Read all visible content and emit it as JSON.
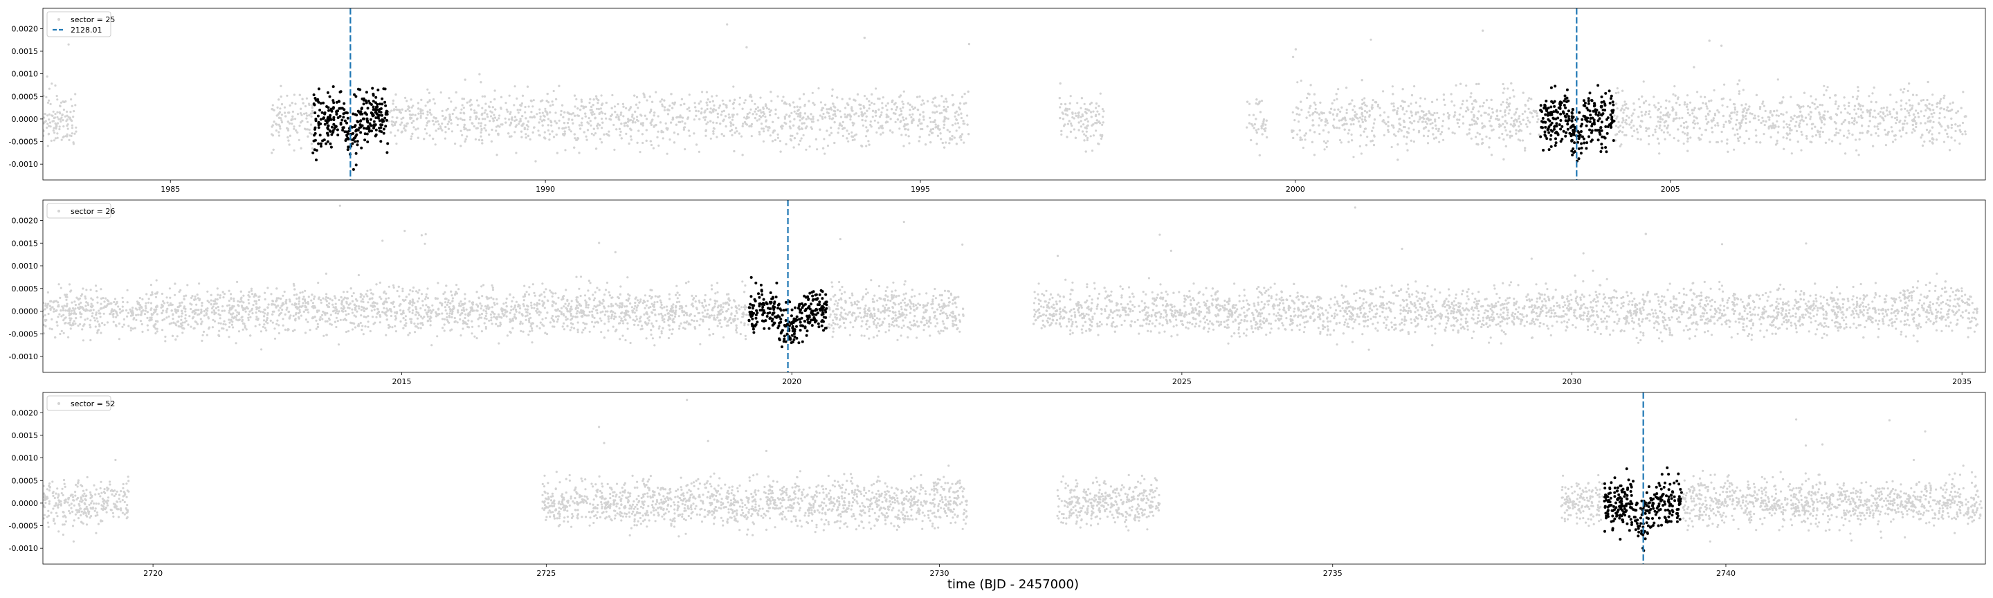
{
  "chart_data": [
    {
      "type": "scatter",
      "legend_position": "upper-left",
      "xlim": [
        1983.3,
        2009.2
      ],
      "ylim": [
        -0.00135,
        0.00245
      ],
      "xticks": [
        "1985",
        "1990",
        "1995",
        "2000",
        "2005"
      ],
      "yticks": [
        "0.0020",
        "0.0015",
        "0.0010",
        "0.0005",
        "0.0000",
        "-0.0005",
        "-0.0010"
      ],
      "series": [
        {
          "name": "sector = 25",
          "style": "points",
          "color": "#d3d3d3",
          "noise": 0.0003,
          "segments": [
            [
              1983.3,
              1983.75
            ],
            [
              1986.35,
              2008.95
            ]
          ],
          "gaps": [
            [
              1995.65,
              1996.85
            ],
            [
              1997.45,
              1999.35
            ],
            [
              1999.65,
              1999.95
            ]
          ]
        },
        {
          "name": "",
          "style": "points",
          "color": "#000000",
          "noise": 0.0003,
          "windows": [
            {
              "center": 1987.4,
              "half_width": 0.5,
              "dip": -0.0004
            },
            {
              "center": 2003.75,
              "half_width": 0.5,
              "dip": -0.0004
            }
          ]
        },
        {
          "name": "2128.01",
          "style": "dashed-vline",
          "color": "#1f77b4",
          "x": [
            1987.4,
            2003.75
          ]
        }
      ]
    },
    {
      "type": "scatter",
      "legend_position": "upper-left",
      "xlim": [
        2010.4,
        2035.3
      ],
      "ylim": [
        -0.00135,
        0.00245
      ],
      "xticks": [
        "2015",
        "2020",
        "2025",
        "2030",
        "2035"
      ],
      "yticks": [
        "0.0020",
        "0.0015",
        "0.0010",
        "0.0005",
        "0.0000",
        "-0.0005",
        "-0.0010"
      ],
      "series": [
        {
          "name": "sector = 26",
          "style": "points",
          "color": "#d3d3d3",
          "noise": 0.00025,
          "segments": [
            [
              2010.4,
              2022.2
            ],
            [
              2023.1,
              2035.2
            ]
          ]
        },
        {
          "name": "",
          "style": "points",
          "color": "#000000",
          "noise": 0.00025,
          "windows": [
            {
              "center": 2019.95,
              "half_width": 0.5,
              "dip": -0.0004
            }
          ]
        },
        {
          "name": "",
          "style": "dashed-vline",
          "color": "#1f77b4",
          "x": [
            2019.95
          ]
        }
      ]
    },
    {
      "type": "scatter",
      "legend_position": "upper-left",
      "xlim": [
        2718.6,
        2743.3
      ],
      "ylim": [
        -0.00135,
        0.00245
      ],
      "xticks": [
        "2720",
        "2725",
        "2730",
        "2735",
        "2740"
      ],
      "yticks": [
        "0.0020",
        "0.0015",
        "0.0010",
        "0.0005",
        "0.0000",
        "-0.0005",
        "-0.0010"
      ],
      "series": [
        {
          "name": "sector = 52",
          "style": "points",
          "color": "#d3d3d3",
          "noise": 0.00025,
          "segments": [
            [
              2718.6,
              2719.7
            ],
            [
              2724.95,
              2730.35
            ],
            [
              2731.5,
              2732.8
            ],
            [
              2737.9,
              2743.25
            ]
          ]
        },
        {
          "name": "",
          "style": "points",
          "color": "#000000",
          "noise": 0.00028,
          "windows": [
            {
              "center": 2738.95,
              "half_width": 0.5,
              "dip": -0.0004
            }
          ]
        },
        {
          "name": "",
          "style": "dashed-vline",
          "color": "#1f77b4",
          "x": [
            2738.95
          ]
        }
      ]
    }
  ],
  "xlabel": "time (BJD - 2457000)"
}
